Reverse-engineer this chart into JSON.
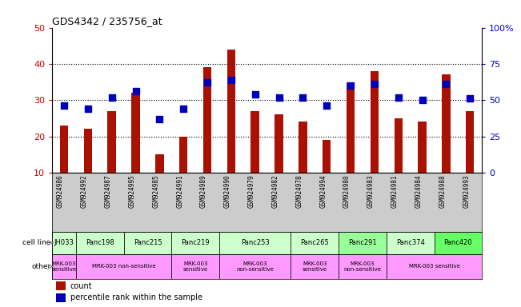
{
  "title": "GDS4342 / 235756_at",
  "samples": [
    "GSM924986",
    "GSM924992",
    "GSM924987",
    "GSM924995",
    "GSM924985",
    "GSM924991",
    "GSM924989",
    "GSM924990",
    "GSM924979",
    "GSM924982",
    "GSM924978",
    "GSM924994",
    "GSM924980",
    "GSM924983",
    "GSM924981",
    "GSM924984",
    "GSM924988",
    "GSM924993"
  ],
  "counts": [
    23,
    22,
    27,
    32,
    15,
    20,
    39,
    44,
    27,
    26,
    24,
    19,
    35,
    38,
    25,
    24,
    37,
    27
  ],
  "percentiles_pct": [
    46,
    44,
    52,
    56,
    37,
    44,
    62,
    64,
    54,
    52,
    52,
    46,
    60,
    61,
    52,
    50,
    61,
    51
  ],
  "cell_line_groups": [
    {
      "name": "JH033",
      "start": 0,
      "end": 1,
      "color": "#ccffcc"
    },
    {
      "name": "Panc198",
      "start": 1,
      "end": 3,
      "color": "#ccffcc"
    },
    {
      "name": "Panc215",
      "start": 3,
      "end": 5,
      "color": "#ccffcc"
    },
    {
      "name": "Panc219",
      "start": 5,
      "end": 7,
      "color": "#ccffcc"
    },
    {
      "name": "Panc253",
      "start": 7,
      "end": 10,
      "color": "#ccffcc"
    },
    {
      "name": "Panc265",
      "start": 10,
      "end": 12,
      "color": "#ccffcc"
    },
    {
      "name": "Panc291",
      "start": 12,
      "end": 14,
      "color": "#99ff99"
    },
    {
      "name": "Panc374",
      "start": 14,
      "end": 16,
      "color": "#ccffcc"
    },
    {
      "name": "Panc420",
      "start": 16,
      "end": 18,
      "color": "#66ff66"
    }
  ],
  "other_groups": [
    {
      "label": "MRK-003\nsensitive",
      "start": 0,
      "end": 1,
      "color": "#ff99ff"
    },
    {
      "label": "MRK-003 non-sensitive",
      "start": 1,
      "end": 5,
      "color": "#ff99ff"
    },
    {
      "label": "MRK-003\nsensitive",
      "start": 5,
      "end": 7,
      "color": "#ff99ff"
    },
    {
      "label": "MRK-003\nnon-sensitive",
      "start": 7,
      "end": 10,
      "color": "#ff99ff"
    },
    {
      "label": "MRK-003\nsensitive",
      "start": 10,
      "end": 12,
      "color": "#ff99ff"
    },
    {
      "label": "MRK-003\nnon-sensitive",
      "start": 12,
      "end": 14,
      "color": "#ff99ff"
    },
    {
      "label": "MRK-003 sensitive",
      "start": 14,
      "end": 18,
      "color": "#ff99ff"
    }
  ],
  "ylim": [
    10,
    50
  ],
  "yticks_left": [
    10,
    20,
    30,
    40,
    50
  ],
  "yticks_right_pct": [
    0,
    25,
    50,
    75,
    100
  ],
  "right_ylabels": [
    "0",
    "25",
    "50",
    "75",
    "100%"
  ],
  "bar_color": "#aa1100",
  "dot_color": "#0000bb",
  "bar_width": 0.35,
  "dot_size": 30,
  "background_color": "#ffffff",
  "left_tick_color": "#cc0000",
  "right_tick_color": "#0000cc",
  "sample_bg_color": "#cccccc",
  "gridline_ticks": [
    20,
    30,
    40
  ]
}
